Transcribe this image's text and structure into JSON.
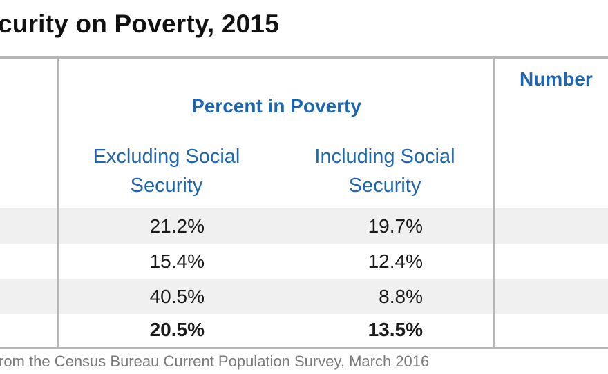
{
  "title": "curity on Poverty, 2015",
  "table": {
    "group_header": "Percent in Poverty",
    "number_header": "Number",
    "columns": [
      {
        "line1": "Excluding Social",
        "line2": "Security"
      },
      {
        "line1": "Including Social",
        "line2": "Security"
      }
    ],
    "rows": [
      {
        "excluding": "21.2%",
        "including": "19.7%",
        "shaded": true,
        "bold": false
      },
      {
        "excluding": "15.4%",
        "including": "12.4%",
        "shaded": false,
        "bold": false
      },
      {
        "excluding": "40.5%",
        "including": "8.8%",
        "shaded": true,
        "bold": false
      },
      {
        "excluding": "20.5%",
        "including": "13.5%",
        "shaded": false,
        "bold": true
      }
    ]
  },
  "footnote": "rom the Census Bureau Current Population Survey, March 2016",
  "colors": {
    "header_blue": "#1f66b0",
    "rule_gray": "#b5b5b5",
    "row_shade": "#f0f0f0"
  }
}
